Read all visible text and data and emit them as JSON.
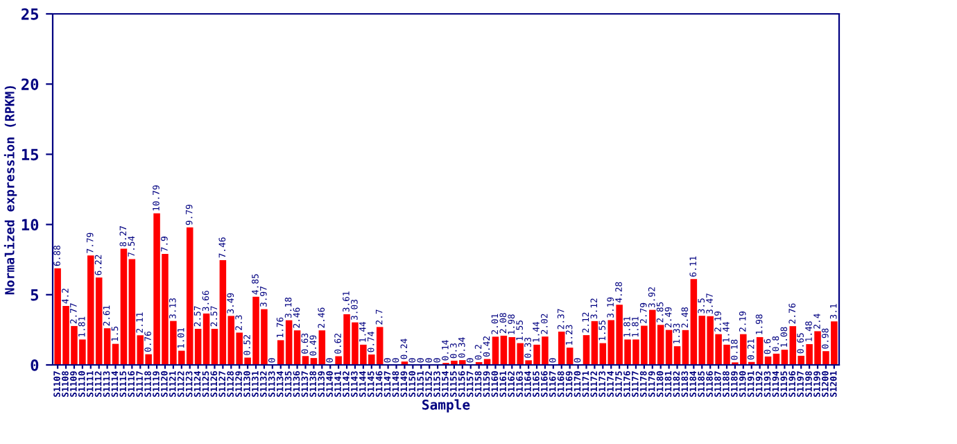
{
  "chart_data": {
    "type": "bar",
    "xlabel": "Sample",
    "ylabel": "Normalized expression (RPKM)",
    "categories": [
      "S1107",
      "S1108",
      "S1109",
      "S1110",
      "S1111",
      "S1112",
      "S1113",
      "S1114",
      "S1115",
      "S1116",
      "S1117",
      "S1118",
      "S1119",
      "S1120",
      "S1121",
      "S1122",
      "S1123",
      "S1124",
      "S1125",
      "S1126",
      "S1127",
      "S1128",
      "S1129",
      "S1130",
      "S1131",
      "S1132",
      "S1133",
      "S1134",
      "S1135",
      "S1136",
      "S1137",
      "S1138",
      "S1139",
      "S1140",
      "S1141",
      "S1142",
      "S1143",
      "S1144",
      "S1145",
      "S1146",
      "S1147",
      "S1148",
      "S1149",
      "S1150",
      "S1151",
      "S1152",
      "S1153",
      "S1154",
      "S1155",
      "S1156",
      "S1157",
      "S1158",
      "S1159",
      "S1160",
      "S1161",
      "S1162",
      "S1163",
      "S1164",
      "S1165",
      "S1166",
      "S1167",
      "S1168",
      "S1169",
      "S1170",
      "S1171",
      "S1172",
      "S1173",
      "S1174",
      "S1175",
      "S1176",
      "S1177",
      "S1178",
      "S1179",
      "S1180",
      "S1181",
      "S1182",
      "S1183",
      "S1184",
      "S1185",
      "S1186",
      "S1187",
      "S1188",
      "S1189",
      "S1190",
      "S1191",
      "S1192",
      "S1193",
      "S1194",
      "S1195",
      "S1196",
      "S1197",
      "S1198",
      "S1199",
      "S1200",
      "S1201"
    ],
    "values": [
      6.88,
      4.2,
      2.77,
      1.81,
      7.79,
      6.22,
      2.61,
      1.5,
      8.27,
      7.54,
      2.11,
      0.76,
      10.79,
      7.9,
      3.13,
      1.01,
      9.79,
      2.57,
      3.66,
      2.57,
      7.46,
      3.49,
      2.3,
      0.52,
      4.85,
      3.97,
      0,
      1.76,
      3.18,
      2.46,
      0.63,
      0.49,
      2.46,
      0,
      0.62,
      3.61,
      3.03,
      1.44,
      0.74,
      2.7,
      0,
      0,
      0.24,
      0,
      0,
      0,
      0,
      0.14,
      0.3,
      0.34,
      0,
      0.2,
      0.42,
      2.01,
      2.08,
      1.98,
      1.55,
      0.33,
      1.44,
      2.02,
      0,
      2.37,
      1.23,
      0,
      2.12,
      3.12,
      1.55,
      3.19,
      4.28,
      1.81,
      1.81,
      2.79,
      3.92,
      2.85,
      2.49,
      1.33,
      2.48,
      6.11,
      3.5,
      3.47,
      2.19,
      1.44,
      0.18,
      2.19,
      0.21,
      1.98,
      0.6,
      0.8,
      1.08,
      2.76,
      0.65,
      1.48,
      2.4,
      0.98,
      3.1
    ],
    "color": "#ff0000",
    "ylim": [
      0,
      25
    ],
    "yticks": [
      0,
      5,
      10,
      15,
      20,
      25
    ],
    "data_labels": true,
    "grid": false,
    "legend": false
  }
}
